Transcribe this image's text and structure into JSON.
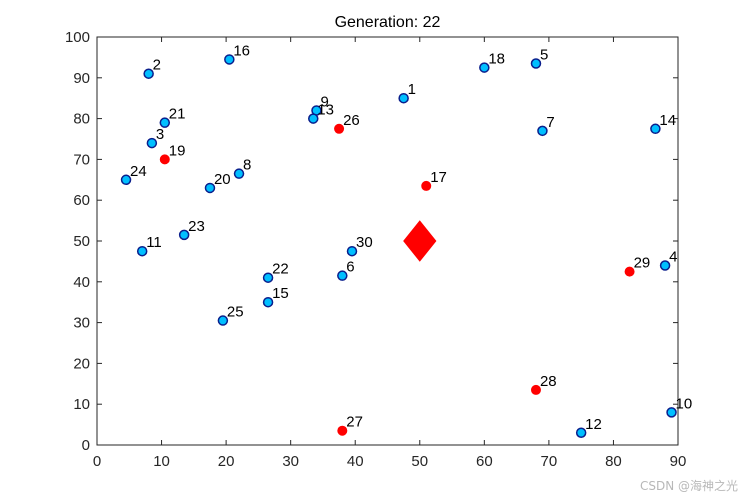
{
  "chart_data": {
    "type": "scatter",
    "title": "Generation: 22",
    "xlabel": "",
    "ylabel": "",
    "xlim": [
      0,
      90
    ],
    "ylim": [
      0,
      100
    ],
    "xticks": [
      0,
      10,
      20,
      30,
      40,
      50,
      60,
      70,
      80,
      90
    ],
    "yticks": [
      0,
      10,
      20,
      30,
      40,
      50,
      60,
      70,
      80,
      90,
      100
    ],
    "grid": false,
    "colors": {
      "blue_fill": "#00bfff",
      "blue_edge": "#0a1e8c",
      "red": "#ff0000",
      "axis": "#262626"
    },
    "center": {
      "x": 50,
      "y": 50,
      "marker": "diamond"
    },
    "points": [
      {
        "id": "1",
        "x": 47.5,
        "y": 85,
        "color": "blue"
      },
      {
        "id": "2",
        "x": 8,
        "y": 91,
        "color": "blue"
      },
      {
        "id": "3",
        "x": 8.5,
        "y": 74,
        "color": "blue"
      },
      {
        "id": "4",
        "x": 88,
        "y": 44,
        "color": "blue"
      },
      {
        "id": "5",
        "x": 68,
        "y": 93.5,
        "color": "blue"
      },
      {
        "id": "6",
        "x": 38,
        "y": 41.5,
        "color": "blue"
      },
      {
        "id": "7",
        "x": 69,
        "y": 77,
        "color": "blue"
      },
      {
        "id": "8",
        "x": 22,
        "y": 66.5,
        "color": "blue"
      },
      {
        "id": "9",
        "x": 34,
        "y": 82,
        "color": "blue"
      },
      {
        "id": "10",
        "x": 89,
        "y": 8,
        "color": "blue"
      },
      {
        "id": "11",
        "x": 7,
        "y": 47.5,
        "color": "blue"
      },
      {
        "id": "12",
        "x": 75,
        "y": 3,
        "color": "blue"
      },
      {
        "id": "13",
        "x": 33.5,
        "y": 80,
        "color": "blue"
      },
      {
        "id": "14",
        "x": 86.5,
        "y": 77.5,
        "color": "blue"
      },
      {
        "id": "15",
        "x": 26.5,
        "y": 35,
        "color": "blue"
      },
      {
        "id": "16",
        "x": 20.5,
        "y": 94.5,
        "color": "blue"
      },
      {
        "id": "17",
        "x": 51,
        "y": 63.5,
        "color": "red"
      },
      {
        "id": "18",
        "x": 60,
        "y": 92.5,
        "color": "blue"
      },
      {
        "id": "19",
        "x": 10.5,
        "y": 70,
        "color": "red"
      },
      {
        "id": "20",
        "x": 17.5,
        "y": 63,
        "color": "blue"
      },
      {
        "id": "21",
        "x": 10.5,
        "y": 79,
        "color": "blue"
      },
      {
        "id": "22",
        "x": 26.5,
        "y": 41,
        "color": "blue"
      },
      {
        "id": "23",
        "x": 13.5,
        "y": 51.5,
        "color": "blue"
      },
      {
        "id": "24",
        "x": 4.5,
        "y": 65,
        "color": "blue"
      },
      {
        "id": "25",
        "x": 19.5,
        "y": 30.5,
        "color": "blue"
      },
      {
        "id": "26",
        "x": 37.5,
        "y": 77.5,
        "color": "red"
      },
      {
        "id": "27",
        "x": 38,
        "y": 3.5,
        "color": "red"
      },
      {
        "id": "28",
        "x": 68,
        "y": 13.5,
        "color": "red"
      },
      {
        "id": "29",
        "x": 82.5,
        "y": 42.5,
        "color": "red"
      },
      {
        "id": "30",
        "x": 39.5,
        "y": 47.5,
        "color": "blue"
      }
    ]
  },
  "watermark": "CSDN @海神之光"
}
